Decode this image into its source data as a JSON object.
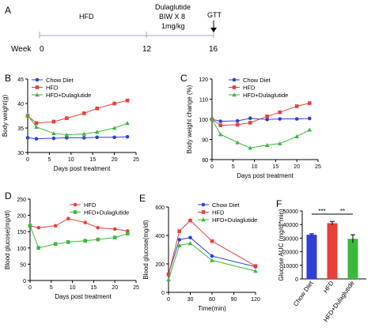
{
  "timeline": {
    "panel_label": "A",
    "week_label": "Week",
    "weeks": [
      "0",
      "12",
      "16"
    ],
    "phase_labels": [
      "HFD",
      "Dulaglutide",
      "BIW X 8",
      "1mg/kg",
      "GTT"
    ]
  },
  "colors": {
    "chow": "#2f3fd6",
    "hfd": "#e8403a",
    "dula": "#3cb83c",
    "line": "#9aa8c8"
  },
  "chart_data": [
    {
      "panel": "B",
      "type": "line",
      "xlabel": "Days post treatment",
      "ylabel": "Body weight(g)",
      "xlim": [
        0,
        25
      ],
      "ylim": [
        30,
        45
      ],
      "xticks": [
        0,
        5,
        10,
        15,
        20,
        25
      ],
      "yticks": [
        30,
        35,
        40,
        45
      ],
      "legend_position": "top-left",
      "x": [
        0,
        2,
        6,
        9,
        13,
        16,
        20,
        23
      ],
      "series": [
        {
          "name": "Chow Diet",
          "marker": "circle",
          "values": [
            33.0,
            32.8,
            32.9,
            33.0,
            33.0,
            33.1,
            33.1,
            33.2
          ]
        },
        {
          "name": "HFD",
          "marker": "square",
          "values": [
            37.5,
            36.0,
            36.3,
            37.0,
            38.0,
            39.0,
            40.0,
            40.6
          ]
        },
        {
          "name": "HFD+Dulaglutide",
          "marker": "triangle",
          "values": [
            37.6,
            35.2,
            33.9,
            33.6,
            33.8,
            34.2,
            35.0,
            36.0
          ]
        }
      ]
    },
    {
      "panel": "C",
      "type": "line",
      "xlabel": "Days post treatment",
      "ylabel": "Body weight change (%)",
      "xlim": [
        0,
        25
      ],
      "ylim": [
        80,
        120
      ],
      "xticks": [
        0,
        5,
        10,
        15,
        20,
        25
      ],
      "yticks": [
        80,
        90,
        100,
        110,
        120
      ],
      "legend_position": "top-left",
      "x": [
        0,
        2,
        6,
        9,
        13,
        16,
        20,
        23
      ],
      "series": [
        {
          "name": "Chow Diet",
          "marker": "circle",
          "values": [
            100,
            99.0,
            99.2,
            100.5,
            99.9,
            100.2,
            100.2,
            100.4
          ]
        },
        {
          "name": "HFD",
          "marker": "square",
          "values": [
            100,
            97.0,
            97.3,
            98.3,
            101.5,
            103.5,
            106.5,
            108.0
          ]
        },
        {
          "name": "HFD+Dulaglutide",
          "marker": "triangle",
          "values": [
            100,
            92.5,
            88.5,
            85.8,
            87.2,
            88.0,
            91.5,
            94.8
          ]
        }
      ]
    },
    {
      "panel": "D",
      "type": "line",
      "xlabel": "Days post treatment",
      "ylabel": "Blood glucose(mg/dl)",
      "xlim": [
        0,
        25
      ],
      "ylim": [
        0,
        250
      ],
      "xticks": [
        0,
        5,
        10,
        15,
        20,
        25
      ],
      "yticks": [
        0,
        50,
        100,
        150,
        200,
        250
      ],
      "legend_position": "top-right",
      "x": [
        0,
        2,
        6,
        9,
        13,
        16,
        20,
        23
      ],
      "series": [
        {
          "name": "HFD",
          "marker": "circle",
          "values": [
            168,
            162,
            168,
            190,
            178,
            162,
            158,
            152
          ]
        },
        {
          "name": "HFD+Dulaglutide",
          "marker": "square",
          "values": [
            168,
            100,
            112,
            118,
            122,
            126,
            132,
            144
          ]
        }
      ]
    },
    {
      "panel": "E",
      "type": "line",
      "xlabel": "Time(min)",
      "ylabel": "Blood glucose(mg/dl)",
      "xlim": [
        0,
        120
      ],
      "ylim": [
        0,
        600
      ],
      "xticks": [
        0,
        30,
        60,
        90,
        120
      ],
      "yticks": [
        0,
        200,
        400,
        600
      ],
      "legend_position": "top-right",
      "x": [
        0,
        15,
        30,
        60,
        120
      ],
      "series": [
        {
          "name": "Chow Diet",
          "marker": "circle",
          "values": [
            130,
            370,
            385,
            255,
            180
          ]
        },
        {
          "name": "HFD",
          "marker": "square",
          "values": [
            125,
            430,
            505,
            360,
            185
          ]
        },
        {
          "name": "HFD+Dulaglutide",
          "marker": "triangle",
          "values": [
            90,
            330,
            345,
            225,
            150
          ]
        }
      ]
    },
    {
      "panel": "F",
      "type": "bar",
      "ylabel": "Glucose AUC (mg/dl*min)",
      "ylim": [
        0,
        50000
      ],
      "yticks": [
        0,
        10000,
        20000,
        30000,
        40000,
        50000
      ],
      "categories": [
        "Chow Diet",
        "HFD",
        "HFD+Dulaglutide"
      ],
      "values": [
        32500,
        41000,
        29500
      ],
      "errors": [
        700,
        1300,
        3000
      ],
      "annotations": [
        "***",
        "**"
      ]
    }
  ]
}
